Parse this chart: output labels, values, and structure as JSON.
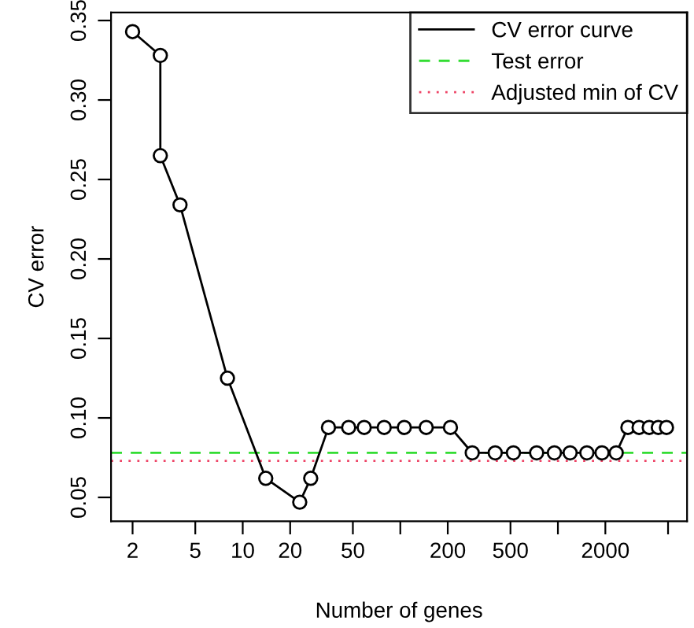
{
  "chart_data": {
    "type": "line",
    "xlabel": "Number of genes",
    "ylabel": "CV error",
    "log": "x",
    "marker": "circle",
    "line_style": "solid",
    "grid": false,
    "legend": "top right",
    "x": [
      2,
      3,
      3,
      4,
      8,
      14,
      23,
      27,
      35,
      47,
      59,
      79,
      106,
      146,
      208,
      286,
      400,
      522,
      733,
      950,
      1195,
      1527,
      1906,
      2344,
      2781,
      3273,
      3796,
      4335,
      4887
    ],
    "series": [
      {
        "name": "CV error curve",
        "color": "#000000",
        "values": [
          0.343,
          0.328,
          0.265,
          0.234,
          0.125,
          0.062,
          0.047,
          0.062,
          0.094,
          0.094,
          0.094,
          0.094,
          0.094,
          0.094,
          0.094,
          0.078,
          0.078,
          0.078,
          0.078,
          0.078,
          0.078,
          0.078,
          0.078,
          0.078,
          0.094,
          0.094,
          0.094,
          0.094,
          0.094
        ]
      }
    ],
    "ref_lines": [
      {
        "axis": "y",
        "value": 0.078,
        "label": "Test error",
        "color": "#33dd33",
        "line_style": "dashed"
      },
      {
        "axis": "y",
        "value": 0.073,
        "label": "Adjusted min of CV",
        "color": "#ee4466",
        "line_style": "dotted"
      }
    ],
    "xlim": [
      1.46,
      6600
    ],
    "ylim": [
      0.035,
      0.355
    ],
    "xticks": [
      2,
      5,
      10,
      20,
      50,
      {
        "value": 100,
        "label": null
      },
      200,
      500,
      {
        "value": 1000,
        "label": null
      },
      2000,
      {
        "value": 5000,
        "label": null
      }
    ],
    "yticks": [
      {
        "value": 0.05,
        "label": "0.05"
      },
      {
        "value": 0.1,
        "label": "0.10"
      },
      {
        "value": 0.15,
        "label": "0.15"
      },
      {
        "value": 0.2,
        "label": "0.20"
      },
      {
        "value": 0.25,
        "label": "0.25"
      },
      {
        "value": 0.3,
        "label": "0.30"
      },
      {
        "value": 0.35,
        "label": "0.35"
      }
    ]
  }
}
